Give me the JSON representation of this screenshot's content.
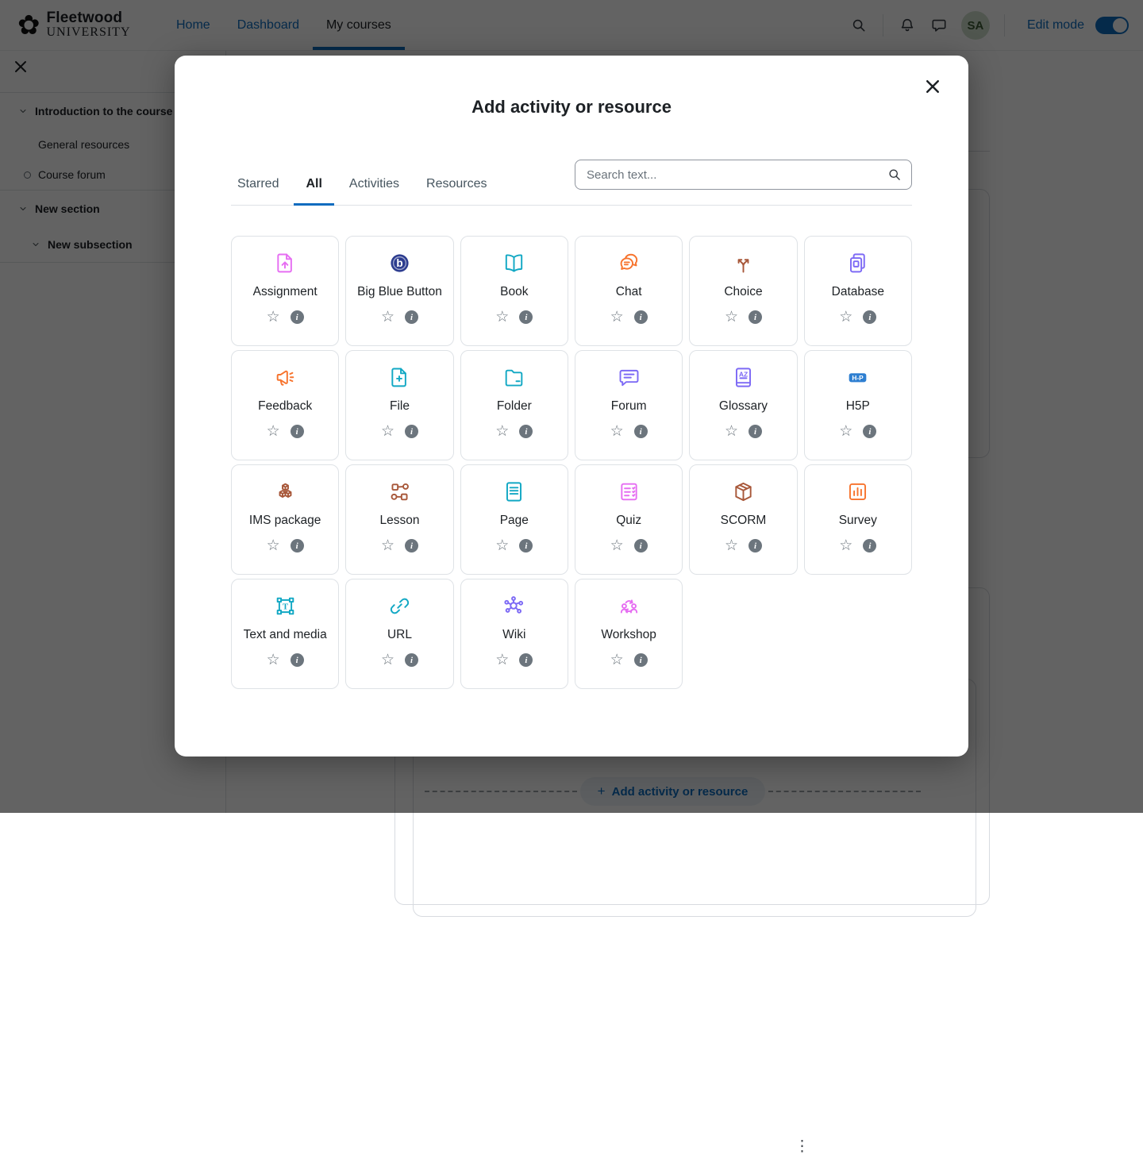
{
  "navbar": {
    "brand": {
      "line1": "Fleetwood",
      "line2": "UNIVERSITY"
    },
    "links": [
      {
        "label": "Home",
        "active": false
      },
      {
        "label": "Dashboard",
        "active": false
      },
      {
        "label": "My courses",
        "active": true
      }
    ],
    "avatar_initials": "SA",
    "edit_mode_label": "Edit mode",
    "edit_mode_on": true
  },
  "drawer": {
    "items": [
      {
        "label": "Introduction to the course",
        "type": "section",
        "divider_before": true
      },
      {
        "label": "General resources",
        "type": "sub"
      },
      {
        "label": "Course forum",
        "type": "sub-bullet"
      },
      {
        "label": "New section",
        "type": "section",
        "divider_before": true
      },
      {
        "label": "New subsection",
        "type": "subsection",
        "divider_after": true
      }
    ]
  },
  "background": {
    "add_button_label": "Add activity or resource",
    "kebab_glyph": "⋮"
  },
  "modal": {
    "title": "Add activity or resource",
    "close_label": "close",
    "tabs": [
      {
        "label": "Starred",
        "active": false
      },
      {
        "label": "All",
        "active": true
      },
      {
        "label": "Activities",
        "active": false
      },
      {
        "label": "Resources",
        "active": false
      }
    ],
    "search_placeholder": "Search text...",
    "cards": [
      {
        "label": "Assignment",
        "icon": "assignment-icon",
        "color": "#e66ef2"
      },
      {
        "label": "Big Blue Button",
        "icon": "bigbluebutton-icon",
        "color": "#2c3c8f"
      },
      {
        "label": "Book",
        "icon": "book-icon",
        "color": "#12a8c4"
      },
      {
        "label": "Chat",
        "icon": "chat-icon",
        "color": "#f7742e"
      },
      {
        "label": "Choice",
        "icon": "choice-icon",
        "color": "#a8583a"
      },
      {
        "label": "Database",
        "icon": "database-icon",
        "color": "#7d6af5"
      },
      {
        "label": "Feedback",
        "icon": "feedback-icon",
        "color": "#f7742e"
      },
      {
        "label": "File",
        "icon": "file-icon",
        "color": "#12a8c4"
      },
      {
        "label": "Folder",
        "icon": "folder-icon",
        "color": "#12a8c4"
      },
      {
        "label": "Forum",
        "icon": "forum-icon",
        "color": "#7d6af5"
      },
      {
        "label": "Glossary",
        "icon": "glossary-icon",
        "color": "#7d6af5"
      },
      {
        "label": "H5P",
        "icon": "h5p-icon",
        "color": "#2e7fd1"
      },
      {
        "label": "IMS package",
        "icon": "ims-package-icon",
        "color": "#a8583a"
      },
      {
        "label": "Lesson",
        "icon": "lesson-icon",
        "color": "#a8583a"
      },
      {
        "label": "Page",
        "icon": "page-icon",
        "color": "#12a8c4"
      },
      {
        "label": "Quiz",
        "icon": "quiz-icon",
        "color": "#e66ef2"
      },
      {
        "label": "SCORM",
        "icon": "scorm-icon",
        "color": "#a8583a"
      },
      {
        "label": "Survey",
        "icon": "survey-icon",
        "color": "#f7742e"
      },
      {
        "label": "Text and media",
        "icon": "text-media-icon",
        "color": "#12a8c4"
      },
      {
        "label": "URL",
        "icon": "url-icon",
        "color": "#12a8c4"
      },
      {
        "label": "Wiki",
        "icon": "wiki-icon",
        "color": "#7d6af5"
      },
      {
        "label": "Workshop",
        "icon": "workshop-icon",
        "color": "#e66ef2"
      }
    ],
    "card_actions": {
      "star_glyph": "☆",
      "info_glyph": "i"
    }
  },
  "colors": {
    "primary": "#0f6cbf",
    "card_border": "#dee2e6",
    "muted_icon": "#6c757d"
  }
}
